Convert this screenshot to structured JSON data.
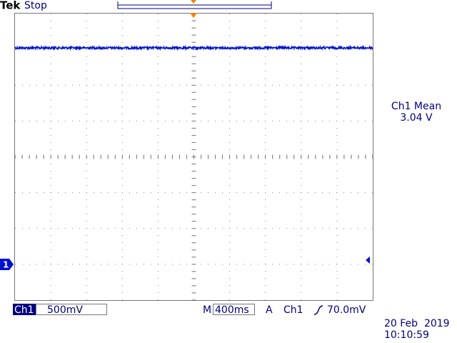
{
  "header": {
    "brand": "Tek",
    "status": "Stop"
  },
  "measurement": {
    "label": "Ch1 Mean",
    "value": "3.04 V"
  },
  "channel_marker": "1",
  "footer": {
    "channel": "Ch1",
    "volts_per_div": "500mV",
    "time_prefix": "M",
    "time_per_div": "400ms",
    "trigger_prefix": "A",
    "trigger_source": "Ch1",
    "trigger_level": "70.0mV"
  },
  "timestamp": {
    "date": "20 Feb  2019",
    "time": "10:10:59"
  }
}
